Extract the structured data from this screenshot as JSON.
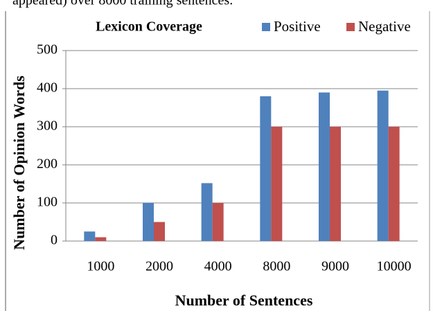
{
  "caption": "appeared) over 8000 training sentences.",
  "chart_data": {
    "type": "bar",
    "title": "Lexicon Coverage",
    "x_label": "Number of Sentences",
    "y_label": "Number of Opinion Words",
    "categories": [
      "1000",
      "2000",
      "4000",
      "8000",
      "9000",
      "10000"
    ],
    "series": [
      {
        "name": "Positive",
        "color": "#4f81bd",
        "values": [
          25,
          100,
          152,
          380,
          390,
          395
        ]
      },
      {
        "name": "Negative",
        "color": "#c0504d",
        "values": [
          10,
          50,
          100,
          300,
          300,
          300
        ]
      }
    ],
    "ylim": [
      0,
      500
    ],
    "yticks": [
      0,
      100,
      200,
      300,
      400,
      500
    ],
    "grid": true,
    "legend": "top-right"
  }
}
